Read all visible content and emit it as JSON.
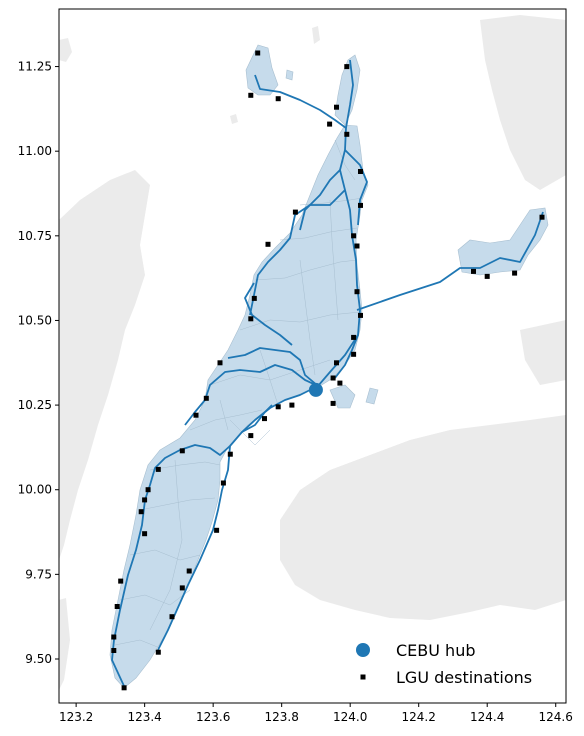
{
  "chart_data": {
    "type": "map",
    "xlim": [
      123.15,
      124.63
    ],
    "ylim": [
      9.37,
      11.42
    ],
    "x_ticks": [
      123.2,
      123.4,
      123.6,
      123.8,
      124.0,
      124.2,
      124.4,
      124.6
    ],
    "x_tick_labels": [
      "123.2",
      "123.4",
      "123.6",
      "123.8",
      "124.0",
      "124.2",
      "124.4",
      "124.6"
    ],
    "y_ticks": [
      9.5,
      9.75,
      10.0,
      10.25,
      10.5,
      10.75,
      11.0,
      11.25
    ],
    "y_tick_labels": [
      "9.50",
      "9.75",
      "10.00",
      "10.25",
      "10.50",
      "10.75",
      "11.00",
      "11.25"
    ],
    "colors": {
      "land": "#ebebeb",
      "province_fill": "#c6dbeb",
      "province_border": "#a8bfd0",
      "route": "#1f77b4",
      "hub": "#1f77b4",
      "destination": "#000000"
    },
    "hub": {
      "name": "CEBU hub",
      "lon": 123.9,
      "lat": 10.295
    },
    "destinations": [
      [
        123.73,
        11.29
      ],
      [
        123.71,
        11.165
      ],
      [
        123.79,
        11.155
      ],
      [
        123.99,
        11.25
      ],
      [
        123.96,
        11.13
      ],
      [
        123.94,
        11.08
      ],
      [
        123.99,
        11.05
      ],
      [
        124.03,
        10.94
      ],
      [
        124.03,
        10.84
      ],
      [
        123.84,
        10.82
      ],
      [
        124.01,
        10.75
      ],
      [
        124.02,
        10.72
      ],
      [
        124.56,
        10.805
      ],
      [
        124.36,
        10.645
      ],
      [
        124.4,
        10.63
      ],
      [
        124.48,
        10.64
      ],
      [
        123.76,
        10.725
      ],
      [
        123.72,
        10.565
      ],
      [
        123.71,
        10.505
      ],
      [
        124.02,
        10.585
      ],
      [
        124.03,
        10.515
      ],
      [
        124.01,
        10.45
      ],
      [
        124.01,
        10.4
      ],
      [
        123.96,
        10.375
      ],
      [
        123.95,
        10.33
      ],
      [
        123.97,
        10.315
      ],
      [
        123.95,
        10.255
      ],
      [
        123.83,
        10.25
      ],
      [
        123.79,
        10.245
      ],
      [
        123.75,
        10.21
      ],
      [
        123.71,
        10.16
      ],
      [
        123.62,
        10.375
      ],
      [
        123.58,
        10.27
      ],
      [
        123.55,
        10.22
      ],
      [
        123.51,
        10.115
      ],
      [
        123.65,
        10.105
      ],
      [
        123.63,
        10.02
      ],
      [
        123.44,
        10.06
      ],
      [
        123.41,
        10.0
      ],
      [
        123.4,
        9.97
      ],
      [
        123.39,
        9.935
      ],
      [
        123.4,
        9.87
      ],
      [
        123.61,
        9.88
      ],
      [
        123.53,
        9.76
      ],
      [
        123.51,
        9.71
      ],
      [
        123.48,
        9.625
      ],
      [
        123.33,
        9.73
      ],
      [
        123.32,
        9.655
      ],
      [
        123.31,
        9.565
      ],
      [
        123.31,
        9.525
      ],
      [
        123.44,
        9.52
      ],
      [
        123.34,
        9.415
      ]
    ],
    "legend": {
      "position": "lower-right",
      "entries": [
        {
          "label": "CEBU hub",
          "marker": "circle"
        },
        {
          "label": "LGU destinations",
          "marker": "square"
        }
      ]
    }
  }
}
